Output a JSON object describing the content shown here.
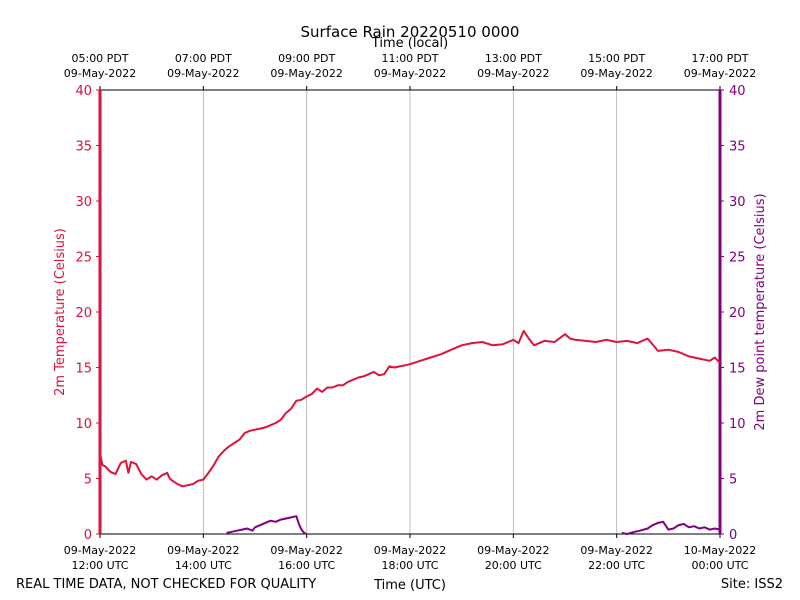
{
  "chart_data": {
    "type": "line",
    "title": "Surface Rain 20220510 0000",
    "top_axis_label": "Time (local)",
    "xlabel": "Time (UTC)",
    "ylabel_left": "2m Temperature (Celsius)",
    "ylabel_right": "2m Dew point temperature (Celsius)",
    "footer_left": "REAL TIME DATA, NOT CHECKED FOR QUALITY",
    "footer_right": "Site: ISS2",
    "xlim_hours_utc": [
      12,
      24
    ],
    "ylim_left": [
      0,
      40
    ],
    "ylim_right": [
      0,
      40
    ],
    "y_ticks": [
      "0",
      "5",
      "10",
      "15",
      "20",
      "25",
      "30",
      "35",
      "40"
    ],
    "x_ticks_bottom": [
      {
        "date": "09-May-2022",
        "time": "12:00 UTC"
      },
      {
        "date": "09-May-2022",
        "time": "14:00 UTC"
      },
      {
        "date": "09-May-2022",
        "time": "16:00 UTC"
      },
      {
        "date": "09-May-2022",
        "time": "18:00 UTC"
      },
      {
        "date": "09-May-2022",
        "time": "20:00 UTC"
      },
      {
        "date": "09-May-2022",
        "time": "22:00 UTC"
      },
      {
        "date": "10-May-2022",
        "time": "00:00 UTC"
      }
    ],
    "x_ticks_top": [
      {
        "time": "05:00 PDT",
        "date": "09-May-2022"
      },
      {
        "time": "07:00 PDT",
        "date": "09-May-2022"
      },
      {
        "time": "09:00 PDT",
        "date": "09-May-2022"
      },
      {
        "time": "11:00 PDT",
        "date": "09-May-2022"
      },
      {
        "time": "13:00 PDT",
        "date": "09-May-2022"
      },
      {
        "time": "15:00 PDT",
        "date": "09-May-2022"
      },
      {
        "time": "17:00 PDT",
        "date": "09-May-2022"
      }
    ],
    "grid": "vertical",
    "series": [
      {
        "name": "2m Temperature",
        "axis": "left",
        "color": "#dc143c",
        "x": [
          12.0,
          12.05,
          12.1,
          12.2,
          12.3,
          12.4,
          12.5,
          12.55,
          12.6,
          12.7,
          12.8,
          12.9,
          13.0,
          13.1,
          13.2,
          13.3,
          13.35,
          13.4,
          13.5,
          13.6,
          13.7,
          13.8,
          13.9,
          14.0,
          14.1,
          14.2,
          14.3,
          14.4,
          14.5,
          14.6,
          14.7,
          14.8,
          14.9,
          15.0,
          15.1,
          15.2,
          15.3,
          15.4,
          15.5,
          15.6,
          15.7,
          15.8,
          15.9,
          16.0,
          16.1,
          16.2,
          16.3,
          16.4,
          16.5,
          16.6,
          16.7,
          16.8,
          16.9,
          17.0,
          17.1,
          17.2,
          17.3,
          17.4,
          17.5,
          17.6,
          17.7,
          17.8,
          17.9,
          18.0,
          18.2,
          18.4,
          18.6,
          18.8,
          19.0,
          19.2,
          19.4,
          19.6,
          19.8,
          20.0,
          20.1,
          20.2,
          20.3,
          20.4,
          20.6,
          20.8,
          21.0,
          21.1,
          21.2,
          21.4,
          21.6,
          21.8,
          22.0,
          22.2,
          22.4,
          22.6,
          22.8,
          23.0,
          23.2,
          23.4,
          23.6,
          23.8,
          23.9,
          24.0
        ],
        "values": [
          7.2,
          6.2,
          6.1,
          5.6,
          5.4,
          6.4,
          6.6,
          5.5,
          6.5,
          6.3,
          5.4,
          4.9,
          5.2,
          4.9,
          5.3,
          5.5,
          5.0,
          4.8,
          4.5,
          4.3,
          4.4,
          4.5,
          4.8,
          4.9,
          5.5,
          6.2,
          7.0,
          7.5,
          7.9,
          8.2,
          8.5,
          9.1,
          9.3,
          9.4,
          9.5,
          9.6,
          9.8,
          10.0,
          10.3,
          10.9,
          11.3,
          12.0,
          12.1,
          12.4,
          12.6,
          13.1,
          12.8,
          13.2,
          13.2,
          13.4,
          13.4,
          13.7,
          13.9,
          14.1,
          14.2,
          14.4,
          14.6,
          14.3,
          14.4,
          15.1,
          15.0,
          15.1,
          15.2,
          15.3,
          15.6,
          15.9,
          16.2,
          16.6,
          17.0,
          17.2,
          17.3,
          17.0,
          17.1,
          17.5,
          17.2,
          18.3,
          17.6,
          17.0,
          17.4,
          17.3,
          18.0,
          17.6,
          17.5,
          17.4,
          17.3,
          17.5,
          17.3,
          17.4,
          17.2,
          17.6,
          16.5,
          16.6,
          16.4,
          16.0,
          15.8,
          15.6,
          15.9,
          15.4
        ]
      },
      {
        "name": "2m Dew point temperature",
        "axis": "right",
        "color": "#800080",
        "segments": [
          {
            "x": [
              14.45,
              14.55,
              14.65,
              14.75,
              14.85,
              14.95,
              15.0,
              15.1,
              15.2,
              15.3,
              15.4,
              15.5,
              15.6,
              15.7,
              15.8,
              15.85,
              15.9,
              15.95,
              16.0
            ],
            "values": [
              0.1,
              0.2,
              0.3,
              0.4,
              0.5,
              0.3,
              0.6,
              0.8,
              1.0,
              1.2,
              1.1,
              1.3,
              1.4,
              1.5,
              1.6,
              0.9,
              0.4,
              0.1,
              0.0
            ]
          },
          {
            "x": [
              22.1,
              22.2,
              22.35,
              22.45,
              22.6,
              22.7,
              22.8,
              22.9,
              23.0,
              23.1,
              23.2,
              23.3,
              23.4,
              23.5,
              23.6,
              23.7,
              23.8,
              23.9,
              24.0
            ],
            "values": [
              0.1,
              0.0,
              0.2,
              0.3,
              0.5,
              0.8,
              1.0,
              1.1,
              0.4,
              0.5,
              0.8,
              0.9,
              0.6,
              0.7,
              0.5,
              0.6,
              0.4,
              0.5,
              0.4
            ]
          }
        ]
      }
    ]
  },
  "colors": {
    "left_axis": "#dc143c",
    "right_axis": "#800080",
    "grid": "#b0b0b0",
    "frame": "#000000"
  }
}
